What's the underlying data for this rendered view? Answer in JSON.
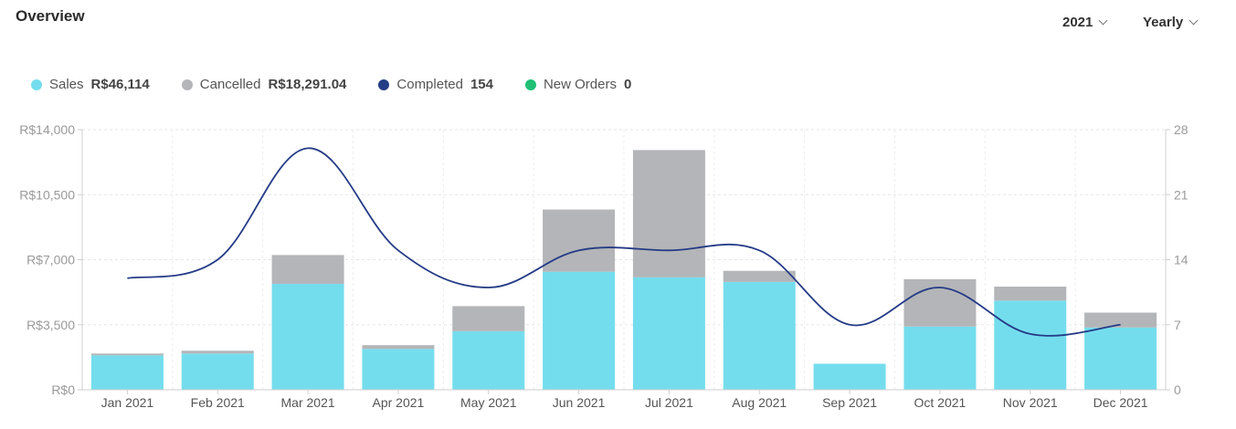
{
  "header": {
    "title": "Overview",
    "year_select": "2021",
    "period_select": "Yearly"
  },
  "legend": [
    {
      "key": "sales",
      "label": "Sales",
      "value": "R$46,114",
      "color": "#74dded"
    },
    {
      "key": "cancelled",
      "label": "Cancelled",
      "value": "R$18,291.04",
      "color": "#b4b5b8"
    },
    {
      "key": "completed",
      "label": "Completed",
      "value": "154",
      "color": "#243b86"
    },
    {
      "key": "new_orders",
      "label": "New Orders",
      "value": "0",
      "color": "#1fbf75"
    }
  ],
  "chart_data": {
    "type": "bar",
    "stacked": true,
    "categories": [
      "Jan 2021",
      "Feb 2021",
      "Mar 2021",
      "Apr 2021",
      "May 2021",
      "Jun 2021",
      "Jul 2021",
      "Aug 2021",
      "Sep 2021",
      "Oct 2021",
      "Nov 2021",
      "Dec 2021"
    ],
    "series": [
      {
        "name": "Sales",
        "type": "bar",
        "axis": "left",
        "color": "#74dded",
        "values": [
          1850,
          1950,
          5700,
          2200,
          3150,
          6350,
          6050,
          5800,
          1400,
          3400,
          4800,
          3350
        ]
      },
      {
        "name": "Cancelled",
        "type": "bar",
        "axis": "left",
        "color": "#b4b5b8",
        "values": [
          100,
          150,
          1550,
          200,
          1350,
          3350,
          6850,
          600,
          0,
          2550,
          750,
          800
        ]
      },
      {
        "name": "Completed",
        "type": "line",
        "axis": "right",
        "color": "#243b86",
        "values": [
          12,
          14,
          26,
          15,
          11,
          15,
          15,
          15,
          7,
          11,
          6,
          7
        ]
      }
    ],
    "y_left": {
      "min": 0,
      "max": 14000,
      "ticks": [
        0,
        3500,
        7000,
        10500,
        14000
      ],
      "tick_labels": [
        "R$0",
        "R$3,500",
        "R$7,000",
        "R$10,500",
        "R$14,000"
      ]
    },
    "y_right": {
      "min": 0,
      "max": 28,
      "ticks": [
        0,
        7,
        14,
        21,
        28
      ],
      "tick_labels": [
        "0",
        "7",
        "14",
        "21",
        "28"
      ]
    },
    "grid": true
  }
}
